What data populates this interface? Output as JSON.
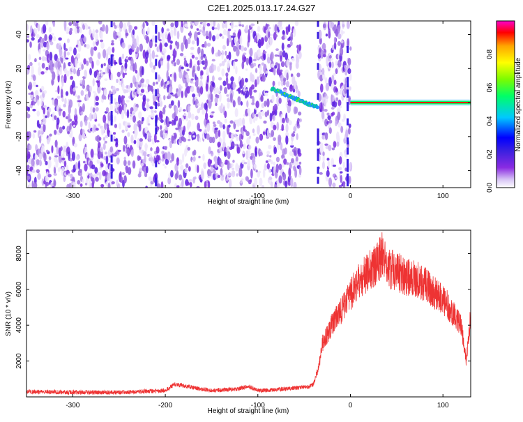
{
  "title": "C2E1.2025.013.17.24.G27",
  "chart_data": [
    {
      "type": "heatmap",
      "xlabel": "Height of straight line (km)",
      "ylabel": "Frequency (Hz)",
      "xlim": [
        -350,
        130
      ],
      "ylim": [
        -50,
        48
      ],
      "xticks": [
        -300,
        -200,
        -100,
        0,
        100
      ],
      "yticks": [
        -40,
        -20,
        0,
        20,
        40
      ],
      "colorbar": {
        "label": "Normalized spectral amplitude",
        "range": [
          0.0,
          1.0
        ],
        "ticks": [
          0.0,
          0.2,
          0.4,
          0.6,
          0.8
        ],
        "tick_labels": [
          "0.0",
          "0.2",
          "0.4",
          "0.6",
          "0.8"
        ],
        "colormap": [
          "#ffffff",
          "#d6c2f5",
          "#8a2be2",
          "#3b20e0",
          "#0000ff",
          "#00c8ff",
          "#00ff66",
          "#7cfc00",
          "#ffff00",
          "#ffa500",
          "#ff0000",
          "#ff00cc"
        ]
      },
      "features": {
        "blank_gap_x": [
          -55,
          -35
        ],
        "vertical_streaks_x": [
          -258,
          -210,
          -35,
          -3
        ],
        "tone": {
          "x": [
            -85,
            -35
          ],
          "y": [
            8,
            -3
          ],
          "note": "drifting narrowband signal before ground"
        },
        "constant_tone": {
          "x": [
            0,
            130
          ],
          "y": 0
        }
      }
    },
    {
      "type": "line",
      "xlabel": "Height of straight line (km)",
      "ylabel": "SNR (10 * v/v)",
      "xlim": [
        -350,
        130
      ],
      "ylim": [
        0,
        9300
      ],
      "xticks": [
        -300,
        -200,
        -100,
        0,
        100
      ],
      "yticks": [
        2000,
        4000,
        6000,
        8000
      ],
      "series": [
        {
          "color": "#ee3333",
          "x": [
            -350,
            -300,
            -250,
            -200,
            -190,
            -150,
            -120,
            -110,
            -100,
            -80,
            -60,
            -45,
            -40,
            -35,
            -30,
            -25,
            -20,
            -10,
            0,
            10,
            20,
            30,
            35,
            40,
            50,
            60,
            70,
            80,
            90,
            100,
            110,
            120,
            125,
            130
          ],
          "y": [
            300,
            250,
            250,
            350,
            700,
            350,
            450,
            600,
            350,
            400,
            500,
            550,
            700,
            1500,
            3000,
            3500,
            4000,
            4800,
            5700,
            6500,
            7000,
            7500,
            8000,
            7200,
            7000,
            6700,
            6600,
            6300,
            5800,
            5500,
            4700,
            4000,
            2000,
            4600
          ]
        }
      ]
    }
  ]
}
